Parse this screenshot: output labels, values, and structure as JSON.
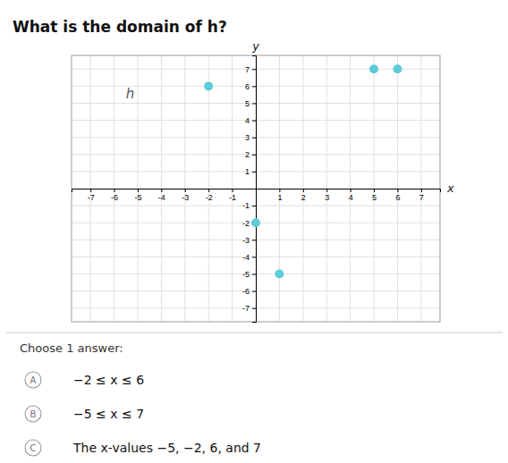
{
  "chart_data": {
    "type": "scatter",
    "title": "What is the domain of h?",
    "x_label": "x",
    "y_label": "y",
    "x": [
      -2,
      0,
      1,
      5,
      6
    ],
    "values": [
      6,
      -2,
      -5,
      7,
      7
    ],
    "color": "#5ecbd8",
    "xlim": [
      -7.8,
      7.8
    ],
    "ylim": [
      -7.8,
      7.8
    ],
    "xticks": [
      -7,
      -6,
      -5,
      -4,
      -3,
      -2,
      -1,
      1,
      2,
      3,
      4,
      5,
      6,
      7
    ],
    "yticks": [
      -7,
      -6,
      -5,
      -4,
      -3,
      -2,
      -1,
      1,
      2,
      3,
      4,
      5,
      6,
      7
    ],
    "grid": true,
    "annotations": [
      {
        "text": "h",
        "x": -5.5,
        "y": 5.3
      },
      {
        "text": "Choose 1 answer:"
      },
      {
        "label": "A",
        "text": "−2 ≤ x ≤ 6"
      },
      {
        "label": "B",
        "text": "−5 ≤ x ≤ 7"
      },
      {
        "label": "C",
        "text": "The x-values −5, −2, 6, and 7"
      }
    ]
  }
}
